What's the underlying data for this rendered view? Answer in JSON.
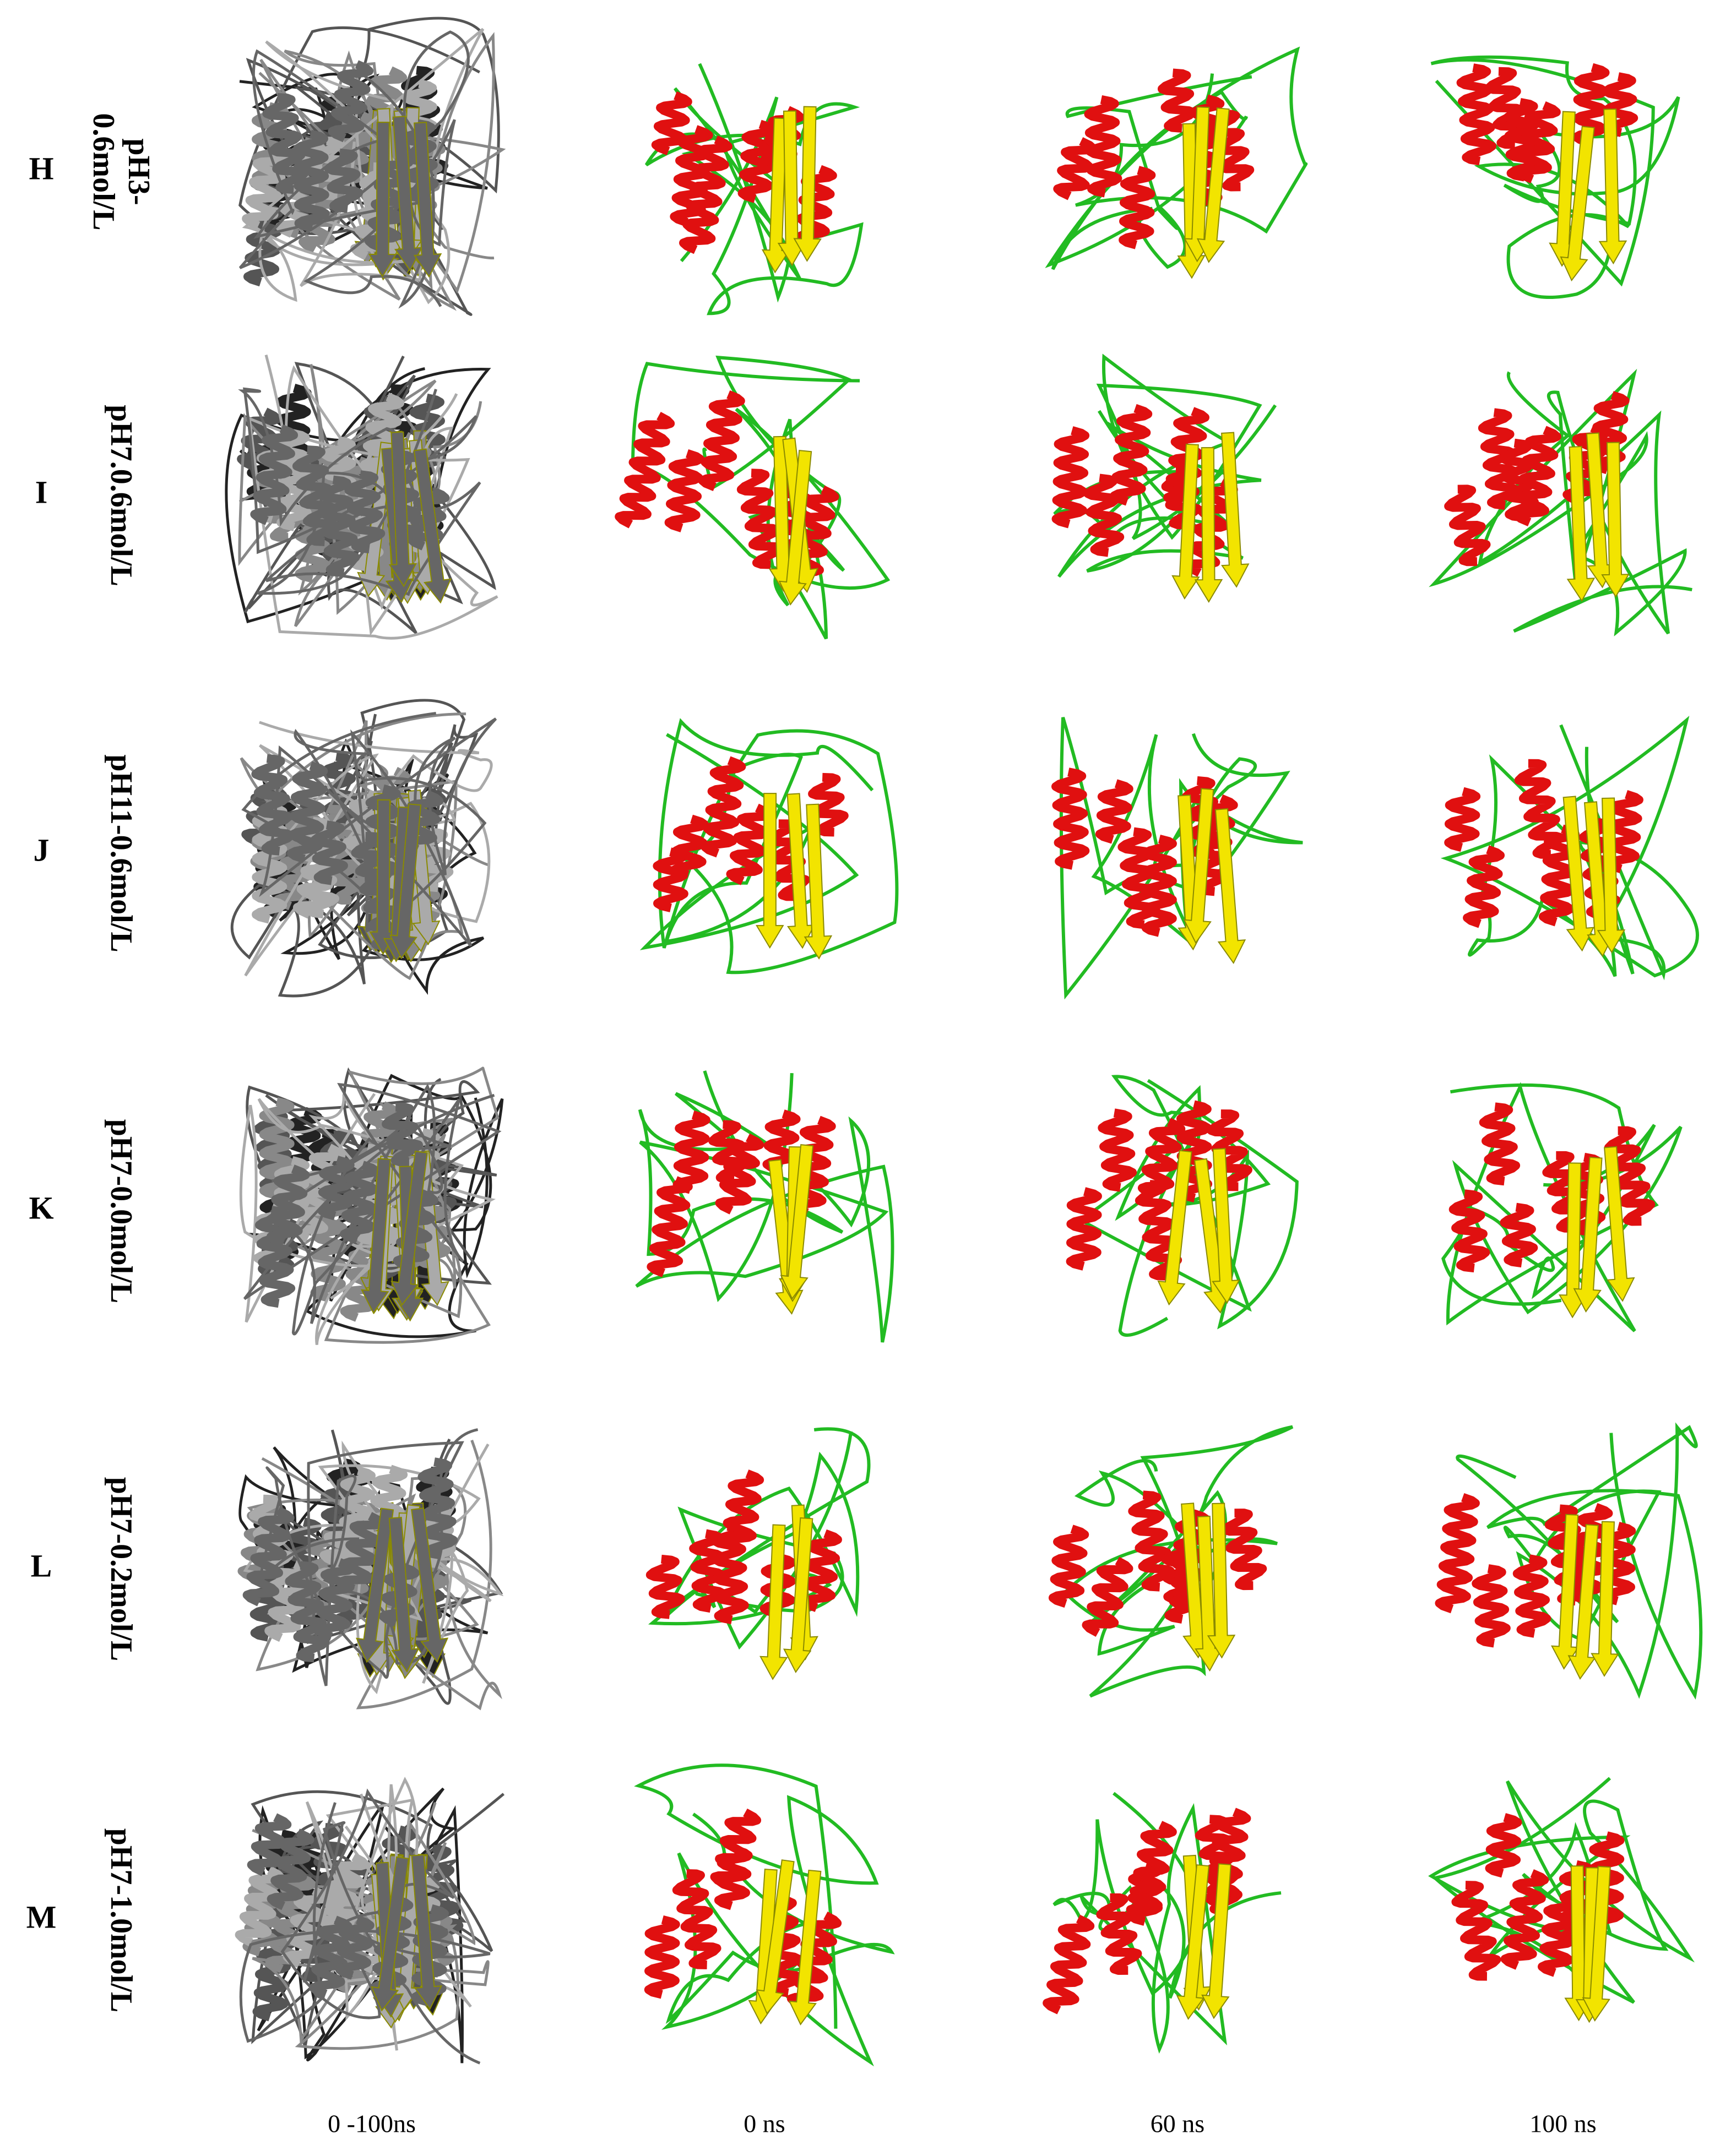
{
  "rows": [
    {
      "letter": "H",
      "condition_lines": [
        "pH3-",
        "0.6mol/L"
      ]
    },
    {
      "letter": "I",
      "condition_lines": [
        "pH7.0.6mol/L"
      ]
    },
    {
      "letter": "J",
      "condition_lines": [
        "pH11-0.6mol/L"
      ]
    },
    {
      "letter": "K",
      "condition_lines": [
        "pH7-0.0mol/L"
      ]
    },
    {
      "letter": "L",
      "condition_lines": [
        "pH7-0.2mol/L"
      ]
    },
    {
      "letter": "M",
      "condition_lines": [
        "pH7-1.0mol/L"
      ]
    }
  ],
  "columns": [
    "0 -100ns",
    "0 ns",
    "60 ns",
    "100 ns"
  ]
}
